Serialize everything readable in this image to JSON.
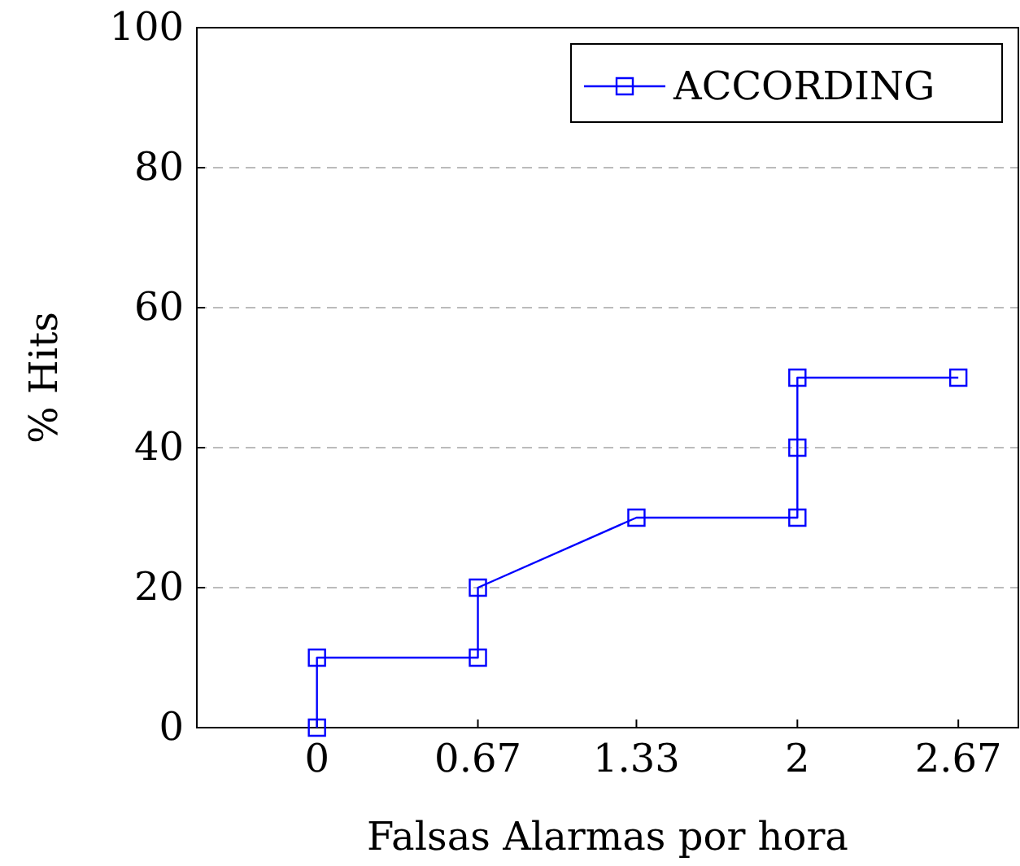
{
  "chart_data": {
    "type": "line",
    "xlabel": "Falsas Alarmas por hora",
    "ylabel": "% Hits",
    "x": [
      0,
      0,
      0.67,
      0.67,
      1.33,
      2,
      2,
      2,
      2.67
    ],
    "series": [
      {
        "name": "ACCORDING",
        "color": "#0000ff",
        "values": [
          0,
          10,
          10,
          20,
          30,
          30,
          40,
          50,
          50
        ]
      }
    ],
    "xlim": [
      -0.5,
      2.92
    ],
    "ylim": [
      0,
      100
    ],
    "xticks": [
      0,
      0.67,
      1.33,
      2,
      2.67
    ],
    "yticks": [
      0,
      20,
      40,
      60,
      80,
      100
    ],
    "grid": "y",
    "legend": "top right",
    "marker": "square",
    "line_style": "solid"
  }
}
